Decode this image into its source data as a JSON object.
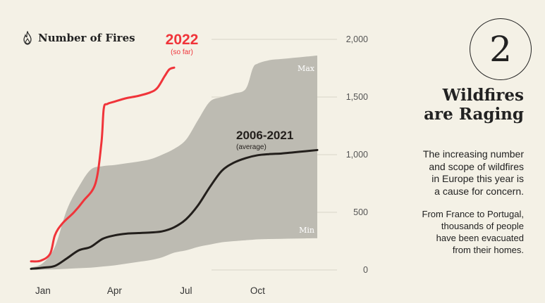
{
  "header": {
    "icon": "fire-icon",
    "label": "Number of Fires"
  },
  "side": {
    "number": "2",
    "title_line1": "Wildfires",
    "title_line2": "are Raging",
    "para1": [
      "The increasing number",
      "and scope of wildfires",
      "in Europe this year is",
      "a cause for concern."
    ],
    "para2": [
      "From France to Portugal,",
      "thousands of people",
      "have been evacuated",
      "from their homes."
    ]
  },
  "colors": {
    "background": "#f4f1e6",
    "range_band": "#bdbbb2",
    "average_line": "#231f1c",
    "current_line": "#f0343a",
    "text": "#222222",
    "tick_text": "#555555"
  },
  "chart_data": {
    "type": "line",
    "x_unit": "month",
    "xlim": [
      0,
      12
    ],
    "ylim": [
      0,
      2000
    ],
    "yticks": [
      0,
      500,
      1000,
      1500,
      2000
    ],
    "ytick_labels": [
      "0",
      "500",
      "1,000",
      "1,500",
      "2,000"
    ],
    "xticks": [
      0.5,
      3.5,
      6.5,
      9.5
    ],
    "xtick_labels": [
      "Jan",
      "Apr",
      "Jul",
      "Oct"
    ],
    "series": [
      {
        "name": "2022",
        "sublabel": "(so far)",
        "x": [
          0.0,
          0.4,
          0.8,
          1.0,
          1.3,
          1.8,
          2.2,
          2.7,
          2.95,
          3.05,
          3.2,
          3.5,
          4.0,
          4.5,
          5.0,
          5.3,
          5.6,
          5.8,
          6.0
        ],
        "y": [
          75,
          80,
          140,
          300,
          400,
          500,
          600,
          750,
          1100,
          1400,
          1440,
          1460,
          1490,
          1510,
          1540,
          1580,
          1680,
          1740,
          1755
        ]
      },
      {
        "name": "2006-2021",
        "sublabel": "(average)",
        "x": [
          0.0,
          0.5,
          1.0,
          1.5,
          2.0,
          2.5,
          3.0,
          3.5,
          4.0,
          4.5,
          5.0,
          5.5,
          6.0,
          6.5,
          7.0,
          7.5,
          8.0,
          8.5,
          9.0,
          9.5,
          10.0,
          10.5,
          11.0,
          11.5,
          12.0
        ],
        "y": [
          10,
          20,
          35,
          100,
          170,
          200,
          270,
          300,
          315,
          320,
          325,
          335,
          370,
          440,
          560,
          720,
          860,
          930,
          970,
          995,
          1005,
          1010,
          1020,
          1030,
          1040
        ]
      }
    ],
    "range": {
      "max_label": "Max",
      "min_label": "Min",
      "x": [
        0.0,
        0.5,
        1.0,
        1.5,
        2.0,
        2.5,
        3.0,
        3.5,
        4.0,
        4.5,
        5.0,
        5.5,
        6.0,
        6.5,
        7.0,
        7.5,
        8.0,
        8.5,
        9.0,
        9.3,
        9.5,
        10.0,
        10.5,
        11.0,
        11.5,
        12.0
      ],
      "max": [
        20,
        60,
        200,
        520,
        720,
        870,
        900,
        910,
        925,
        940,
        960,
        1000,
        1050,
        1130,
        1300,
        1460,
        1500,
        1530,
        1570,
        1750,
        1790,
        1820,
        1830,
        1840,
        1850,
        1860
      ],
      "min": [
        0,
        2,
        5,
        10,
        15,
        20,
        30,
        40,
        55,
        70,
        85,
        110,
        150,
        170,
        200,
        220,
        240,
        250,
        258,
        262,
        265,
        268,
        270,
        272,
        274,
        275
      ]
    }
  }
}
